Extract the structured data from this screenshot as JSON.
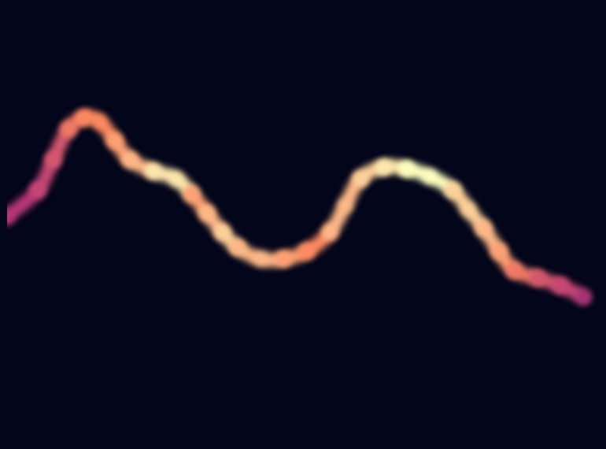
{
  "chart_data": {
    "type": "line",
    "x": [
      0,
      4,
      6,
      8,
      10,
      12,
      14,
      16,
      19,
      22,
      24,
      26,
      28,
      30,
      33,
      36,
      39,
      42,
      44,
      46,
      49,
      52,
      55,
      58,
      60,
      62,
      64,
      66,
      69,
      72,
      75
    ],
    "values": [
      29.5,
      33.0,
      37.0,
      41.0,
      42.5,
      42.0,
      39.5,
      37.0,
      35.5,
      34.5,
      32.5,
      30.0,
      27.5,
      25.5,
      24.0,
      24.0,
      25.0,
      27.5,
      31.0,
      34.5,
      36.0,
      35.8,
      34.8,
      33.0,
      30.5,
      28.0,
      25.0,
      22.5,
      21.5,
      20.5,
      19.0
    ],
    "intensity": [
      0.5,
      0.55,
      0.6,
      0.7,
      0.75,
      0.75,
      0.8,
      0.85,
      0.95,
      0.95,
      0.8,
      0.85,
      0.9,
      0.85,
      0.85,
      0.8,
      0.75,
      0.85,
      0.85,
      0.9,
      0.95,
      1.0,
      1.0,
      0.9,
      0.9,
      0.85,
      0.8,
      0.7,
      0.6,
      0.55,
      0.45
    ],
    "intensity_range": [
      0,
      1
    ],
    "xlim": [
      0,
      77
    ],
    "ylim": [
      0,
      57
    ],
    "tick_labels": false,
    "grid": false
  }
}
